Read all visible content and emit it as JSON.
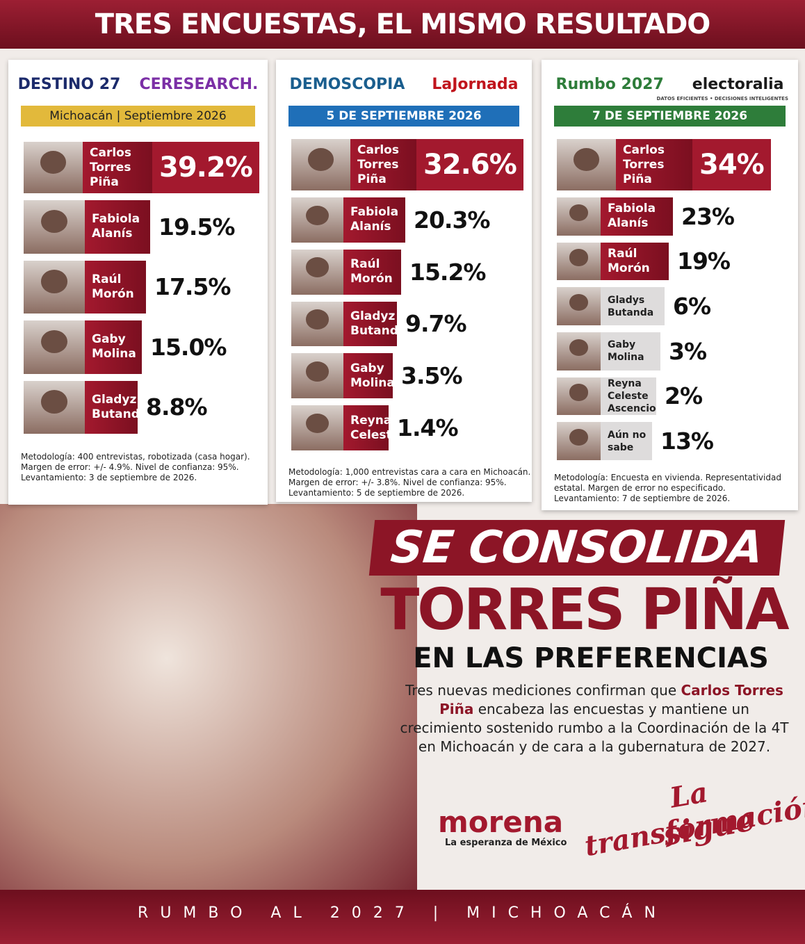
{
  "header": {
    "title": "TRES ENCUESTAS, EL MISMO RESULTADO"
  },
  "polls": [
    {
      "logos": [
        "DESTINO 27",
        "CERESEARCH."
      ],
      "banner": "Michoacán | Septiembre 2026",
      "rows": [
        {
          "name": [
            "Carlos",
            "Torres Piña"
          ],
          "value": "39.2%"
        },
        {
          "name": [
            "Fabiola",
            "Alanís"
          ],
          "value": "19.5%"
        },
        {
          "name": [
            "Raúl",
            "Morón"
          ],
          "value": "17.5%"
        },
        {
          "name": [
            "Gaby",
            "Molina"
          ],
          "value": "15.0%"
        },
        {
          "name": [
            "Gladyz",
            "Butanda"
          ],
          "value": "8.8%"
        }
      ],
      "methodology": [
        "Metodología: 400 entrevistas, robotizada (casa hogar).",
        "Margen de error: +/- 4.9%. Nivel de confianza: 95%.",
        "Levantamiento: 3 de septiembre de 2026."
      ]
    },
    {
      "logos": [
        "DEMOSCOPIA",
        "LaJornada"
      ],
      "banner": "5 DE SEPTIEMBRE 2026",
      "rows": [
        {
          "name": [
            "Carlos",
            "Torres Piña"
          ],
          "value": "32.6%"
        },
        {
          "name": [
            "Fabiola",
            "Alanís"
          ],
          "value": "20.3%"
        },
        {
          "name": [
            "Raúl",
            "Morón"
          ],
          "value": "15.2%"
        },
        {
          "name": [
            "Gladyz",
            "Butanda"
          ],
          "value": "9.7%"
        },
        {
          "name": [
            "Gaby",
            "Molina"
          ],
          "value": "3.5%"
        },
        {
          "name": [
            "Reyna",
            "Celeste"
          ],
          "value": "1.4%"
        }
      ],
      "methodology": [
        "Metodología: 1,000 entrevistas cara a cara en Michoacán.",
        "Margen de error: +/- 3.8%. Nivel de confianza: 95%.",
        "Levantamiento: 5 de septiembre de 2026."
      ]
    },
    {
      "logos": [
        "Rumbo 2027",
        "electoralia",
        "DATOS EFICIENTES • DECISIONES INTELIGENTES"
      ],
      "banner": "7 DE SEPTIEMBRE 2026",
      "rows": [
        {
          "name": [
            "Carlos",
            "Torres Piña"
          ],
          "value": "34%"
        },
        {
          "name": [
            "Fabiola",
            "Alanís"
          ],
          "value": "23%"
        },
        {
          "name": [
            "Raúl",
            "Morón"
          ],
          "value": "19%"
        },
        {
          "name": [
            "Gladys",
            "Butanda"
          ],
          "value": "6%"
        },
        {
          "name": [
            "Gaby",
            "Molina"
          ],
          "value": "3%"
        },
        {
          "name": [
            "Reyna Celeste",
            "Ascencio"
          ],
          "value": "2%"
        },
        {
          "name": [
            "Aún no sabe"
          ],
          "value": "13%"
        }
      ],
      "methodology": [
        "Metodología: Encuesta en vivienda. Representatividad",
        "estatal. Margen de error no especificado.",
        "Levantamiento: 7 de septiembre de 2026."
      ]
    }
  ],
  "headline": {
    "line1": "SE CONSOLIDA",
    "line2": "TORRES PIÑA",
    "line3": "EN LAS PREFERENCIAS"
  },
  "body": {
    "before": "Tres nuevas mediciones confirman que ",
    "bold": "Carlos Torres Piña",
    "after": " encabeza las encuestas y mantiene un crecimiento sostenido rumbo a la Coordinación de la 4T en Michoacán y de cara a la gubernatura de 2027."
  },
  "brand": {
    "name": "morena",
    "tagline": "La esperanza de México"
  },
  "slogan": {
    "line1": "La transformación",
    "line2": "sigue"
  },
  "footer": "RUMBO AL 2027 | MICHOACÁN"
}
